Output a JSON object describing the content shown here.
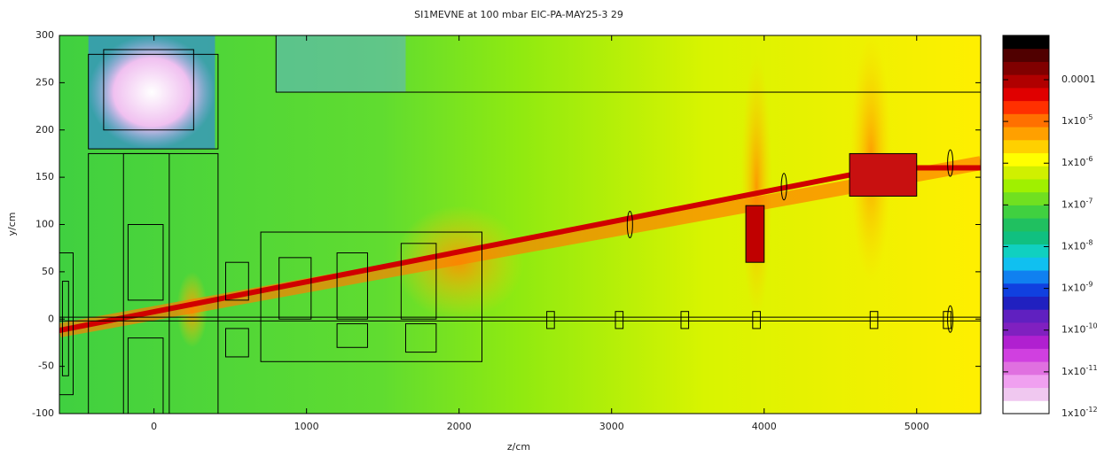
{
  "chart_data": {
    "type": "heatmap",
    "title": "SI1MEVNE at 100 mbar EIC-PA-MAY25-3 29",
    "x_label": "z/cm",
    "y_label": "y/cm",
    "xlim": [
      -620,
      5420
    ],
    "xticks": [
      0,
      1000,
      2000,
      3000,
      4000,
      5000
    ],
    "ylim": [
      -100,
      300
    ],
    "yticks": [
      -100,
      -50,
      0,
      50,
      100,
      150,
      200,
      250,
      300
    ],
    "zlim": [
      1e-12,
      0.00115
    ],
    "zscale": "log",
    "zticks": [
      {
        "value": 0.0001,
        "label": "0.0001"
      },
      {
        "value": 1e-05,
        "label": "1x10",
        "sup": "-5"
      },
      {
        "value": 1e-06,
        "label": "1x10",
        "sup": "-6"
      },
      {
        "value": 1e-07,
        "label": "1x10",
        "sup": "-7"
      },
      {
        "value": 1e-08,
        "label": "1x10",
        "sup": "-8"
      },
      {
        "value": 1e-09,
        "label": "1x10",
        "sup": "-9"
      },
      {
        "value": 1e-10,
        "label": "1x10",
        "sup": "-10"
      },
      {
        "value": 1e-11,
        "label": "1x10",
        "sup": "-11"
      },
      {
        "value": 1e-12,
        "label": "1x10",
        "sup": "-12"
      }
    ],
    "colorscale": [
      "#ffffff",
      "#f0c8f0",
      "#f0a0f0",
      "#e070e0",
      "#d040e0",
      "#b020d0",
      "#8020c0",
      "#6020c0",
      "#2020c0",
      "#1040e0",
      "#1080f0",
      "#10c0f0",
      "#10d0c0",
      "#10c080",
      "#20c060",
      "#40d040",
      "#70e020",
      "#a0f000",
      "#d0f000",
      "#ffff00",
      "#ffd000",
      "#ffa000",
      "#ff7000",
      "#ff3000",
      "#e00000",
      "#b00000",
      "#800000",
      "#500000",
      "#000000"
    ]
  }
}
